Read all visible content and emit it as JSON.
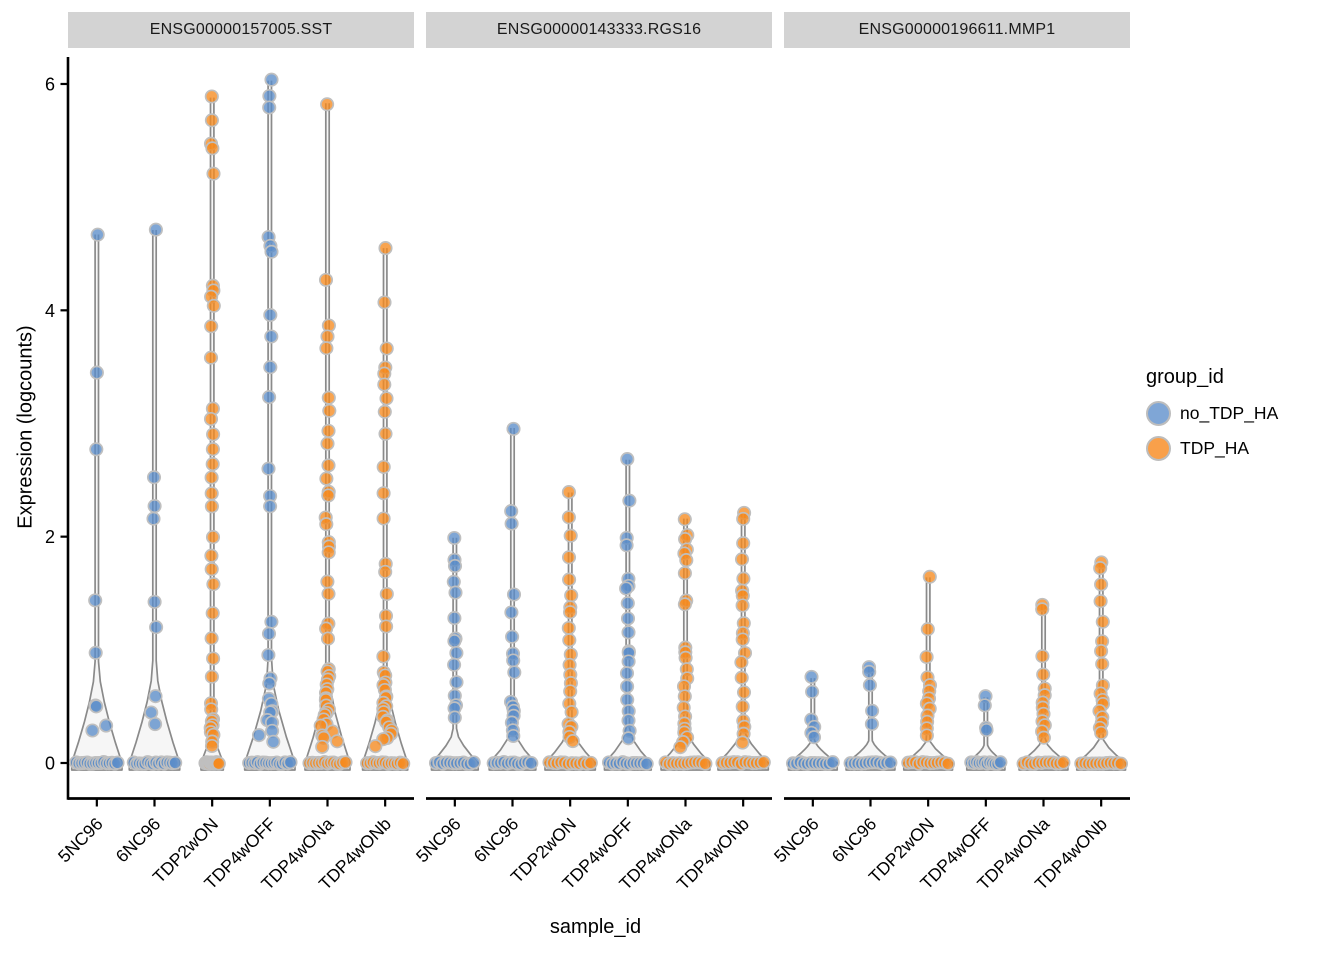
{
  "axes": {
    "y": {
      "title": "Expression (logcounts)",
      "ticks": [
        0,
        2,
        4,
        6
      ],
      "range": [
        -0.2,
        6.3
      ]
    },
    "x": {
      "title": "sample_id",
      "categories": [
        "5NC96",
        "6NC96",
        "TDP2wON",
        "TDP4wOFF",
        "TDP4wONa",
        "TDP4wONb"
      ]
    }
  },
  "legend": {
    "title": "group_id",
    "items": [
      {
        "label": "no_TDP_HA",
        "color": "#7FA6D6"
      },
      {
        "label": "TDP_HA",
        "color": "#F9A04A"
      }
    ]
  },
  "colors": {
    "no_TDP_HA": "#5B8DC9",
    "TDP_HA": "#F68B1F",
    "point_stroke": "#BFBFBF",
    "violin_stroke": "#8A8A8A",
    "violin_fill": "rgba(0,0,0,0.035)",
    "strip_bg": "#D3D3D3",
    "axis": "#000000"
  },
  "chart_data": {
    "type": "violin",
    "subtype": "violin-with-jittered-points",
    "ylabel": "Expression (logcounts)",
    "xlabel": "sample_id",
    "ylim": [
      -0.2,
      6.3
    ],
    "categories": [
      "5NC96",
      "6NC96",
      "TDP2wON",
      "TDP4wOFF",
      "TDP4wONa",
      "TDP4wONb"
    ],
    "group_of_sample": {
      "5NC96": "no_TDP_HA",
      "6NC96": "no_TDP_HA",
      "TDP2wON": "TDP_HA",
      "TDP4wOFF": "no_TDP_HA",
      "TDP4wONa": "TDP_HA",
      "TDP4wONb": "TDP_HA"
    },
    "facets": [
      {
        "title": "ENSG00000157005.SST",
        "violins": [
          {
            "sample": "5NC96",
            "group": "no_TDP_HA",
            "base": 0.95,
            "flare": 0.85,
            "n_zero": 16,
            "points": [
              4.67,
              3.45,
              2.77,
              1.44,
              0.97,
              0.52,
              0.5,
              0.33,
              0.29
            ]
          },
          {
            "sample": "6NC96",
            "group": "no_TDP_HA",
            "base": 0.95,
            "flare": 0.85,
            "n_zero": 16,
            "points": [
              4.71,
              2.52,
              2.27,
              2.15,
              1.42,
              1.19,
              0.58,
              0.44,
              0.35
            ]
          },
          {
            "sample": "TDP2wON",
            "group": "TDP_HA",
            "base": 0.42,
            "flare": 0.14,
            "n_zero": 12,
            "points": [
              5.88,
              5.67,
              5.46,
              5.44,
              5.21,
              4.21,
              4.18,
              4.11,
              4.03,
              3.87,
              3.59,
              3.14,
              3.03,
              2.9,
              2.78,
              2.65,
              2.53,
              2.39,
              2.26,
              2.0,
              1.82,
              1.72,
              1.59,
              1.33,
              1.11,
              0.93,
              0.76,
              0.53,
              0.47,
              0.4,
              0.36,
              0.32,
              0.3,
              0.27,
              0.24,
              0.2,
              0.16
            ]
          },
          {
            "sample": "TDP4wOFF",
            "group": "no_TDP_HA",
            "base": 0.95,
            "flare": 0.82,
            "n_zero": 16,
            "points": [
              6.03,
              5.9,
              5.8,
              4.66,
              4.56,
              4.52,
              3.96,
              3.76,
              3.49,
              3.23,
              2.59,
              2.37,
              2.28,
              1.24,
              1.15,
              0.95,
              0.75,
              0.71,
              0.58,
              0.51,
              0.47,
              0.44,
              0.38,
              0.35,
              0.29,
              0.25,
              0.19
            ]
          },
          {
            "sample": "TDP4wONa",
            "group": "TDP_HA",
            "base": 0.85,
            "flare": 0.75,
            "n_zero": 13,
            "points": [
              5.83,
              4.28,
              3.87,
              3.76,
              3.67,
              3.23,
              3.1,
              2.94,
              2.81,
              2.62,
              2.5,
              2.39,
              2.36,
              2.17,
              2.12,
              1.94,
              1.9,
              1.86,
              1.59,
              1.5,
              1.24,
              1.2,
              1.11,
              0.84,
              0.82,
              0.78,
              0.74,
              0.7,
              0.66,
              0.62,
              0.58,
              0.55,
              0.52,
              0.48,
              0.45,
              0.42,
              0.38,
              0.35,
              0.32,
              0.28,
              0.25,
              0.22,
              0.18,
              0.15
            ]
          },
          {
            "sample": "TDP4wONb",
            "group": "TDP_HA",
            "base": 0.85,
            "flare": 0.75,
            "n_zero": 13,
            "points": [
              4.55,
              4.06,
              3.67,
              3.49,
              3.43,
              3.34,
              3.23,
              3.1,
              2.92,
              2.61,
              2.39,
              2.17,
              1.77,
              1.68,
              1.5,
              1.29,
              1.2,
              0.93,
              0.8,
              0.76,
              0.72,
              0.68,
              0.64,
              0.6,
              0.57,
              0.54,
              0.5,
              0.47,
              0.44,
              0.41,
              0.38,
              0.35,
              0.32,
              0.29,
              0.26,
              0.23,
              0.2,
              0.16
            ]
          }
        ]
      },
      {
        "title": "ENSG00000143333.RGS16",
        "violins": [
          {
            "sample": "5NC96",
            "group": "no_TDP_HA",
            "base": 0.88,
            "flare": 0.28,
            "n_zero": 12,
            "points": [
              1.99,
              1.79,
              1.75,
              1.59,
              1.5,
              1.29,
              1.11,
              1.07,
              0.97,
              0.87,
              0.71,
              0.6,
              0.51,
              0.47,
              0.41
            ]
          },
          {
            "sample": "6NC96",
            "group": "no_TDP_HA",
            "base": 0.88,
            "flare": 0.28,
            "n_zero": 12,
            "points": [
              2.96,
              2.23,
              2.12,
              1.5,
              1.33,
              1.11,
              0.97,
              0.91,
              0.8,
              0.55,
              0.5,
              0.46,
              0.42,
              0.36,
              0.29,
              0.23
            ]
          },
          {
            "sample": "TDP2wON",
            "group": "TDP_HA",
            "base": 0.95,
            "flare": 0.3,
            "n_zero": 12,
            "points": [
              2.39,
              2.16,
              2.0,
              1.82,
              1.62,
              1.47,
              1.38,
              1.33,
              1.2,
              1.09,
              0.97,
              0.88,
              0.79,
              0.71,
              0.62,
              0.53,
              0.44,
              0.35,
              0.31,
              0.28,
              0.23,
              0.19
            ]
          },
          {
            "sample": "TDP4wOFF",
            "group": "no_TDP_HA",
            "base": 0.88,
            "flare": 0.28,
            "n_zero": 12,
            "points": [
              2.68,
              2.32,
              2.0,
              1.93,
              1.62,
              1.57,
              1.53,
              1.41,
              1.29,
              1.15,
              1.0,
              0.97,
              0.91,
              0.79,
              0.67,
              0.56,
              0.47,
              0.38,
              0.29,
              0.22
            ]
          },
          {
            "sample": "TDP4wONa",
            "group": "TDP_HA",
            "base": 0.92,
            "flare": 0.28,
            "n_zero": 12,
            "points": [
              2.16,
              2.01,
              1.97,
              1.88,
              1.84,
              1.79,
              1.69,
              1.44,
              1.4,
              1.02,
              0.98,
              0.94,
              0.84,
              0.76,
              0.67,
              0.58,
              0.49,
              0.42,
              0.36,
              0.31,
              0.27,
              0.23,
              0.19,
              0.14
            ]
          },
          {
            "sample": "TDP4wONb",
            "group": "TDP_HA",
            "base": 0.95,
            "flare": 0.28,
            "n_zero": 12,
            "points": [
              2.2,
              2.16,
              1.93,
              1.79,
              1.62,
              1.53,
              1.48,
              1.38,
              1.24,
              1.14,
              1.08,
              0.97,
              0.88,
              0.76,
              0.62,
              0.49,
              0.38,
              0.32,
              0.25,
              0.19
            ]
          }
        ]
      },
      {
        "title": "ENSG00000196611.MMP1",
        "violins": [
          {
            "sample": "5NC96",
            "group": "no_TDP_HA",
            "base": 0.92,
            "flare": 0.2,
            "n_zero": 12,
            "points": [
              0.75,
              0.62,
              0.38,
              0.32,
              0.27,
              0.22
            ]
          },
          {
            "sample": "6NC96",
            "group": "no_TDP_HA",
            "base": 0.92,
            "flare": 0.2,
            "n_zero": 12,
            "points": [
              0.85,
              0.81,
              0.69,
              0.47,
              0.35
            ]
          },
          {
            "sample": "TDP2wON",
            "group": "TDP_HA",
            "base": 0.92,
            "flare": 0.2,
            "n_zero": 12,
            "points": [
              1.64,
              1.19,
              0.94,
              0.75,
              0.7,
              0.64,
              0.58,
              0.52,
              0.47,
              0.41,
              0.36,
              0.3,
              0.25
            ]
          },
          {
            "sample": "TDP4wOFF",
            "group": "no_TDP_HA",
            "base": 0.72,
            "flare": 0.16,
            "n_zero": 12,
            "points": [
              0.58,
              0.52,
              0.32,
              0.28
            ]
          },
          {
            "sample": "TDP4wONa",
            "group": "TDP_HA",
            "base": 0.92,
            "flare": 0.2,
            "n_zero": 12,
            "points": [
              1.4,
              1.35,
              0.95,
              0.79,
              0.66,
              0.6,
              0.54,
              0.49,
              0.44,
              0.38,
              0.33,
              0.28,
              0.22
            ]
          },
          {
            "sample": "TDP4wONb",
            "group": "TDP_HA",
            "base": 0.92,
            "flare": 0.22,
            "n_zero": 12,
            "points": [
              1.77,
              1.72,
              1.57,
              1.44,
              1.26,
              1.07,
              1.0,
              0.88,
              0.68,
              0.62,
              0.56,
              0.51,
              0.46,
              0.41,
              0.36,
              0.31,
              0.26
            ]
          }
        ]
      }
    ]
  }
}
